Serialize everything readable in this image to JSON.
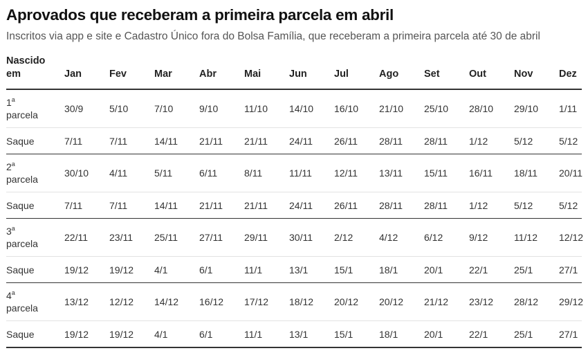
{
  "title": "Aprovados que receberam a primeira parcela em abril",
  "subtitle": "Inscritos via app e site e Cadastro Único fora do Bolsa Família, que receberam a primeira parcela até 30 de abril",
  "table": {
    "header_first_line1": "Nascido",
    "header_first_line2": "em",
    "months": [
      "Jan",
      "Fev",
      "Mar",
      "Abr",
      "Mai",
      "Jun",
      "Jul",
      "Ago",
      "Set",
      "Out",
      "Nov",
      "Dez"
    ],
    "groups": [
      {
        "ordinal": "1",
        "ordinal_suffix": "a",
        "parcela_label": "parcela",
        "parcela_dates": [
          "30/9",
          "5/10",
          "7/10",
          "9/10",
          "11/10",
          "14/10",
          "16/10",
          "21/10",
          "25/10",
          "28/10",
          "29/10",
          "1/11"
        ],
        "saque_label": "Saque",
        "saque_dates": [
          "7/11",
          "7/11",
          "14/11",
          "21/11",
          "21/11",
          "24/11",
          "26/11",
          "28/11",
          "28/11",
          "1/12",
          "5/12",
          "5/12"
        ]
      },
      {
        "ordinal": "2",
        "ordinal_suffix": "a",
        "parcela_label": "parcela",
        "parcela_dates": [
          "30/10",
          "4/11",
          "5/11",
          "6/11",
          "8/11",
          "11/11",
          "12/11",
          "13/11",
          "15/11",
          "16/11",
          "18/11",
          "20/11"
        ],
        "saque_label": "Saque",
        "saque_dates": [
          "7/11",
          "7/11",
          "14/11",
          "21/11",
          "21/11",
          "24/11",
          "26/11",
          "28/11",
          "28/11",
          "1/12",
          "5/12",
          "5/12"
        ]
      },
      {
        "ordinal": "3",
        "ordinal_suffix": "a",
        "parcela_label": "parcela",
        "parcela_dates": [
          "22/11",
          "23/11",
          "25/11",
          "27/11",
          "29/11",
          "30/11",
          "2/12",
          "4/12",
          "6/12",
          "9/12",
          "11/12",
          "12/12"
        ],
        "saque_label": "Saque",
        "saque_dates": [
          "19/12",
          "19/12",
          "4/1",
          "6/1",
          "11/1",
          "13/1",
          "15/1",
          "18/1",
          "20/1",
          "22/1",
          "25/1",
          "27/1"
        ]
      },
      {
        "ordinal": "4",
        "ordinal_suffix": "a",
        "parcela_label": "parcela",
        "parcela_dates": [
          "13/12",
          "12/12",
          "14/12",
          "16/12",
          "17/12",
          "18/12",
          "20/12",
          "20/12",
          "21/12",
          "23/12",
          "28/12",
          "29/12"
        ],
        "saque_label": "Saque",
        "saque_dates": [
          "19/12",
          "19/12",
          "4/1",
          "6/1",
          "11/1",
          "13/1",
          "15/1",
          "18/1",
          "20/1",
          "22/1",
          "25/1",
          "27/1"
        ]
      }
    ]
  }
}
